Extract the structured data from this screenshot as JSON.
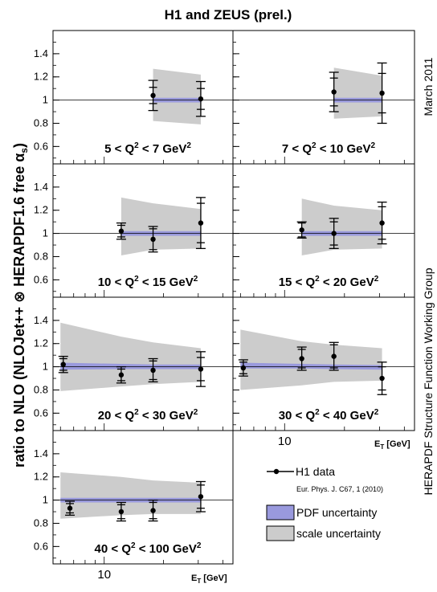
{
  "title": "H1 and ZEUS (prel.)",
  "date_label": "March 2011",
  "ylabel_prefix": "ratio to NLO (NLOJet++ ",
  "ylabel_otimes": "⊗",
  "ylabel_suffix": " HERAPDF1.6 free α",
  "ylabel_sub": "s",
  "ylabel_close": ")",
  "group_label": "HERAPDF Structure Function Working Group",
  "xaxis_label_main": "E",
  "xaxis_label_sub": "T",
  "xaxis_label_unit": " [GeV]",
  "legend": {
    "data_label": "H1 data",
    "reference": "Eur. Phys. J. C67, 1 (2010)",
    "pdf_label": "PDF uncertainty",
    "scale_label": "scale uncertainty"
  },
  "colors": {
    "pdf_band": "#9999dd",
    "scale_band": "#cccccc",
    "data": "#000000"
  },
  "chart_data": {
    "type": "scatter",
    "xscale": "log",
    "xlim": [
      5.5,
      45
    ],
    "ylim": [
      0.45,
      1.6
    ],
    "yticks": [
      "0.6",
      "0.8",
      "1",
      "1.2",
      "1.4"
    ],
    "ytick_values": [
      0.6,
      0.8,
      1.0,
      1.2,
      1.4
    ],
    "xticks": [
      "10"
    ],
    "xtick_values": [
      10
    ],
    "reference_line": 1.0,
    "panels": [
      {
        "label": "5 < Q² < 7 GeV²",
        "q2_text": "5 < Q",
        "q2_mid": " < 7 GeV",
        "x": [
          17.7,
          30.9
        ],
        "y": [
          1.04,
          1.01
        ],
        "err_stat": [
          0.07,
          0.09
        ],
        "err_tot": [
          0.13,
          0.15
        ],
        "scale_x": [
          17.7,
          30.9
        ],
        "scale_lo": [
          0.82,
          0.79
        ],
        "scale_hi": [
          1.27,
          1.22
        ],
        "pdf_x": [
          17.7,
          30.9
        ],
        "pdf_lo": [
          0.98,
          0.98
        ],
        "pdf_hi": [
          1.02,
          1.02
        ]
      },
      {
        "label": "7 < Q² < 10 GeV²",
        "q2_text": "7 < Q",
        "q2_mid": " < 10 GeV",
        "x": [
          17.7,
          30.9
        ],
        "y": [
          1.07,
          1.06
        ],
        "err_stat": [
          0.12,
          0.17
        ],
        "err_tot": [
          0.17,
          0.26
        ],
        "scale_x": [
          17.7,
          30.9
        ],
        "scale_lo": [
          0.84,
          0.86
        ],
        "scale_hi": [
          1.28,
          1.21
        ],
        "pdf_x": [
          17.7,
          30.9
        ],
        "pdf_lo": [
          0.98,
          0.98
        ],
        "pdf_hi": [
          1.02,
          1.02
        ]
      },
      {
        "label": "10 < Q² < 15 GeV²",
        "q2_text": "10 < Q",
        "q2_mid": " < 15 GeV",
        "x": [
          12.2,
          17.7,
          30.9
        ],
        "y": [
          1.02,
          0.95,
          1.09
        ],
        "err_stat": [
          0.05,
          0.09,
          0.17
        ],
        "err_tot": [
          0.07,
          0.11,
          0.22
        ],
        "scale_x": [
          12.2,
          17.7,
          30.9
        ],
        "scale_lo": [
          0.81,
          0.86,
          0.87
        ],
        "scale_hi": [
          1.31,
          1.26,
          1.21
        ],
        "pdf_x": [
          12.2,
          17.7,
          30.9
        ],
        "pdf_lo": [
          0.98,
          0.98,
          0.98
        ],
        "pdf_hi": [
          1.02,
          1.02,
          1.02
        ]
      },
      {
        "label": "15 < Q² < 20 GeV²",
        "q2_text": "15 < Q",
        "q2_mid": " < 20 GeV",
        "x": [
          12.2,
          17.7,
          30.9
        ],
        "y": [
          1.03,
          1.0,
          1.09
        ],
        "err_stat": [
          0.06,
          0.1,
          0.14
        ],
        "err_tot": [
          0.07,
          0.13,
          0.18
        ],
        "scale_x": [
          12.2,
          17.7,
          30.9
        ],
        "scale_lo": [
          0.81,
          0.86,
          0.87
        ],
        "scale_hi": [
          1.3,
          1.24,
          1.2
        ],
        "pdf_x": [
          12.2,
          17.7,
          30.9
        ],
        "pdf_lo": [
          0.98,
          0.98,
          0.98
        ],
        "pdf_hi": [
          1.02,
          1.02,
          1.02
        ]
      },
      {
        "label": "20 < Q² < 30 GeV²",
        "q2_text": "20 < Q",
        "q2_mid": " < 30 GeV",
        "x": [
          6.2,
          12.2,
          17.7,
          30.9
        ],
        "y": [
          1.02,
          0.93,
          0.97,
          0.98
        ],
        "err_stat": [
          0.05,
          0.05,
          0.08,
          0.1
        ],
        "err_tot": [
          0.07,
          0.07,
          0.1,
          0.15
        ],
        "scale_x": [
          6.0,
          12.2,
          17.7,
          30.9
        ],
        "scale_lo": [
          0.79,
          0.83,
          0.85,
          0.87
        ],
        "scale_hi": [
          1.38,
          1.26,
          1.21,
          1.16
        ],
        "pdf_x": [
          6.0,
          12.2,
          17.7,
          30.9
        ],
        "pdf_lo": [
          0.975,
          0.98,
          0.98,
          0.98
        ],
        "pdf_hi": [
          1.035,
          1.025,
          1.02,
          1.02
        ]
      },
      {
        "label": "30 < Q² < 40 GeV²",
        "q2_text": "30 < Q",
        "q2_mid": " < 40 GeV",
        "x": [
          6.2,
          12.2,
          17.7,
          30.9
        ],
        "y": [
          0.99,
          1.07,
          1.09,
          0.9
        ],
        "err_stat": [
          0.05,
          0.08,
          0.1,
          0.1
        ],
        "err_tot": [
          0.07,
          0.1,
          0.12,
          0.14
        ],
        "scale_x": [
          6.0,
          12.2,
          17.7,
          30.9
        ],
        "scale_lo": [
          0.8,
          0.84,
          0.87,
          0.88
        ],
        "scale_hi": [
          1.32,
          1.22,
          1.19,
          1.16
        ],
        "pdf_x": [
          6.0,
          12.2,
          17.7,
          30.9
        ],
        "pdf_lo": [
          0.985,
          0.985,
          0.98,
          0.975
        ],
        "pdf_hi": [
          1.035,
          1.025,
          1.02,
          1.015
        ]
      },
      {
        "label": "40 < Q² < 100 GeV²",
        "q2_text": "40 < Q",
        "q2_mid": " < 100 GeV",
        "x": [
          6.7,
          12.2,
          17.7,
          30.9
        ],
        "y": [
          0.93,
          0.9,
          0.91,
          1.03
        ],
        "err_stat": [
          0.04,
          0.06,
          0.07,
          0.1
        ],
        "err_tot": [
          0.06,
          0.08,
          0.09,
          0.13
        ],
        "scale_x": [
          6.0,
          12.2,
          17.7,
          30.9
        ],
        "scale_lo": [
          0.84,
          0.87,
          0.88,
          0.88
        ],
        "scale_hi": [
          1.24,
          1.2,
          1.17,
          1.15
        ],
        "pdf_x": [
          6.0,
          12.2,
          17.7,
          30.9
        ],
        "pdf_lo": [
          0.98,
          0.98,
          0.98,
          0.98
        ],
        "pdf_hi": [
          1.02,
          1.02,
          1.02,
          1.02
        ]
      }
    ]
  }
}
